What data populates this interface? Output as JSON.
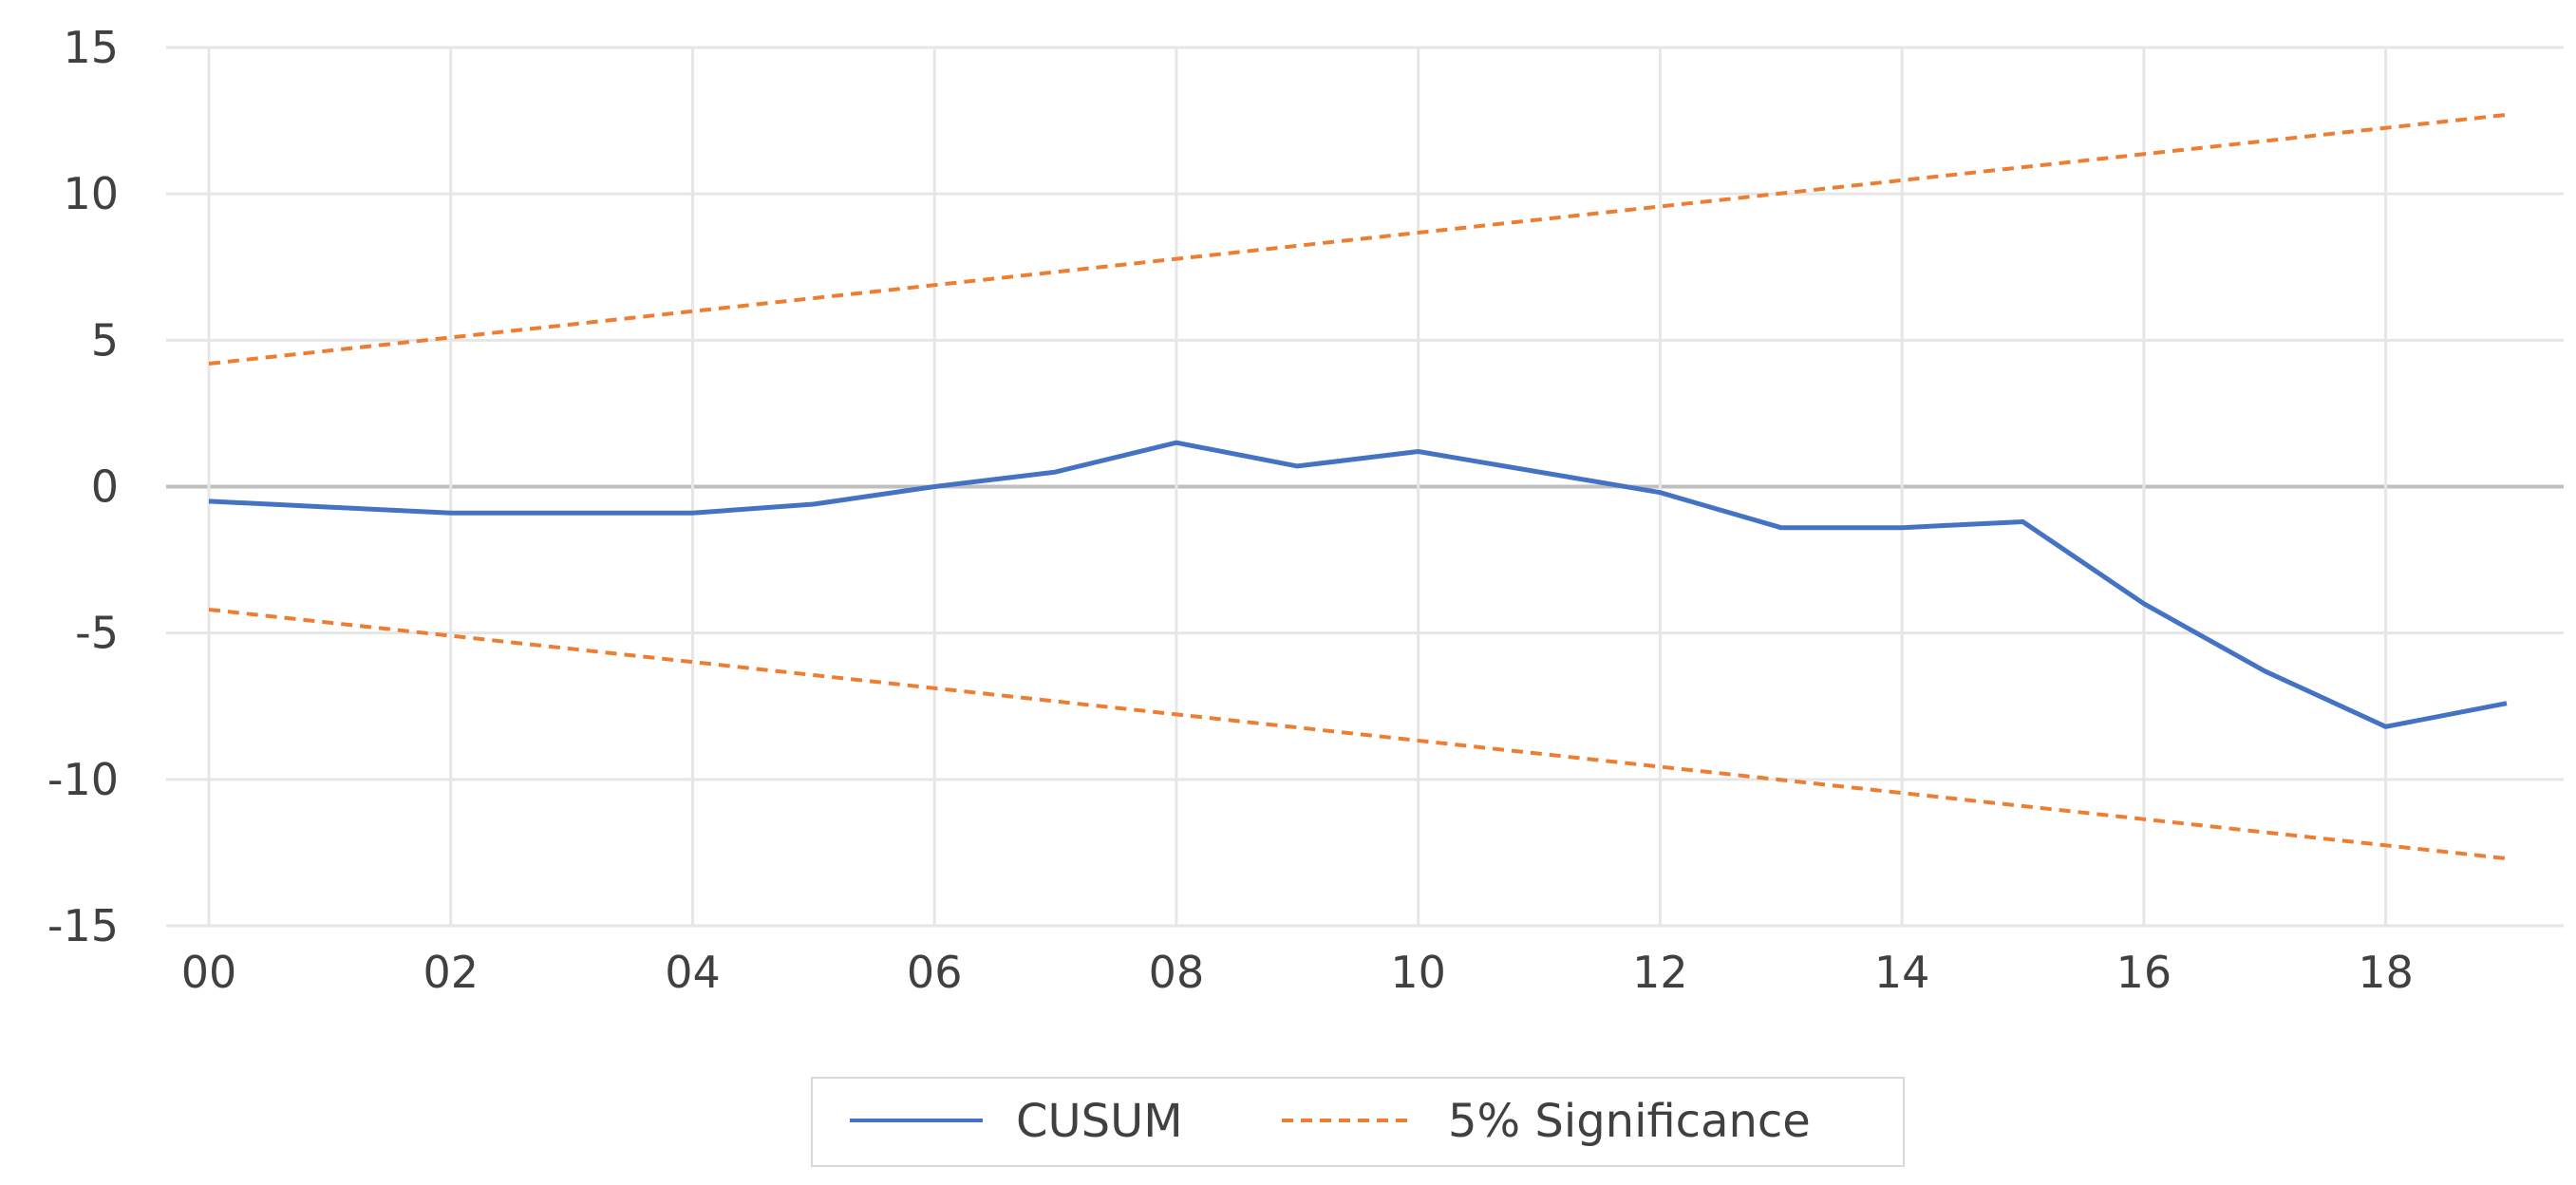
{
  "chart_data": {
    "type": "line",
    "x_tick_labels": [
      "00",
      "02",
      "04",
      "06",
      "08",
      "10",
      "12",
      "14",
      "16",
      "18"
    ],
    "y_tick_labels": [
      "15",
      "10",
      "5",
      "0",
      "-5",
      "-10",
      "-15"
    ],
    "xlim": [
      2000,
      2019
    ],
    "ylim": [
      -15,
      15
    ],
    "y_ticks": [
      15,
      10,
      5,
      0,
      -5,
      -10,
      -15
    ],
    "x_ticks": [
      2000,
      2002,
      2004,
      2006,
      2008,
      2010,
      2012,
      2014,
      2016,
      2018
    ],
    "grid": true,
    "legend_position": "bottom",
    "series": [
      {
        "name": "CUSUM",
        "style": "solid",
        "color": "#4472C4",
        "x": [
          2000,
          2001,
          2002,
          2003,
          2004,
          2005,
          2006,
          2007,
          2008,
          2009,
          2010,
          2011,
          2012,
          2013,
          2014,
          2015,
          2016,
          2017,
          2018,
          2019
        ],
        "values": [
          -0.5,
          -0.7,
          -0.9,
          -0.9,
          -0.9,
          -0.6,
          0.0,
          0.5,
          1.5,
          0.7,
          1.2,
          0.5,
          -0.2,
          -1.4,
          -1.4,
          -1.2,
          -4.0,
          -6.3,
          -8.2,
          -7.4
        ]
      },
      {
        "name": "5% Significance",
        "style": "dashed",
        "color": "#ED7D31",
        "x": [
          2000,
          2019
        ],
        "values": [
          4.2,
          12.7
        ]
      },
      {
        "name": "",
        "style": "dashed",
        "color": "#ED7D31",
        "x": [
          2000,
          2019
        ],
        "values": [
          -4.2,
          -12.7
        ]
      }
    ],
    "legend": [
      {
        "label": "CUSUM",
        "style": "solid",
        "color": "#4472C4"
      },
      {
        "label": "5% Significance",
        "style": "dashed",
        "color": "#ED7D31"
      }
    ]
  }
}
